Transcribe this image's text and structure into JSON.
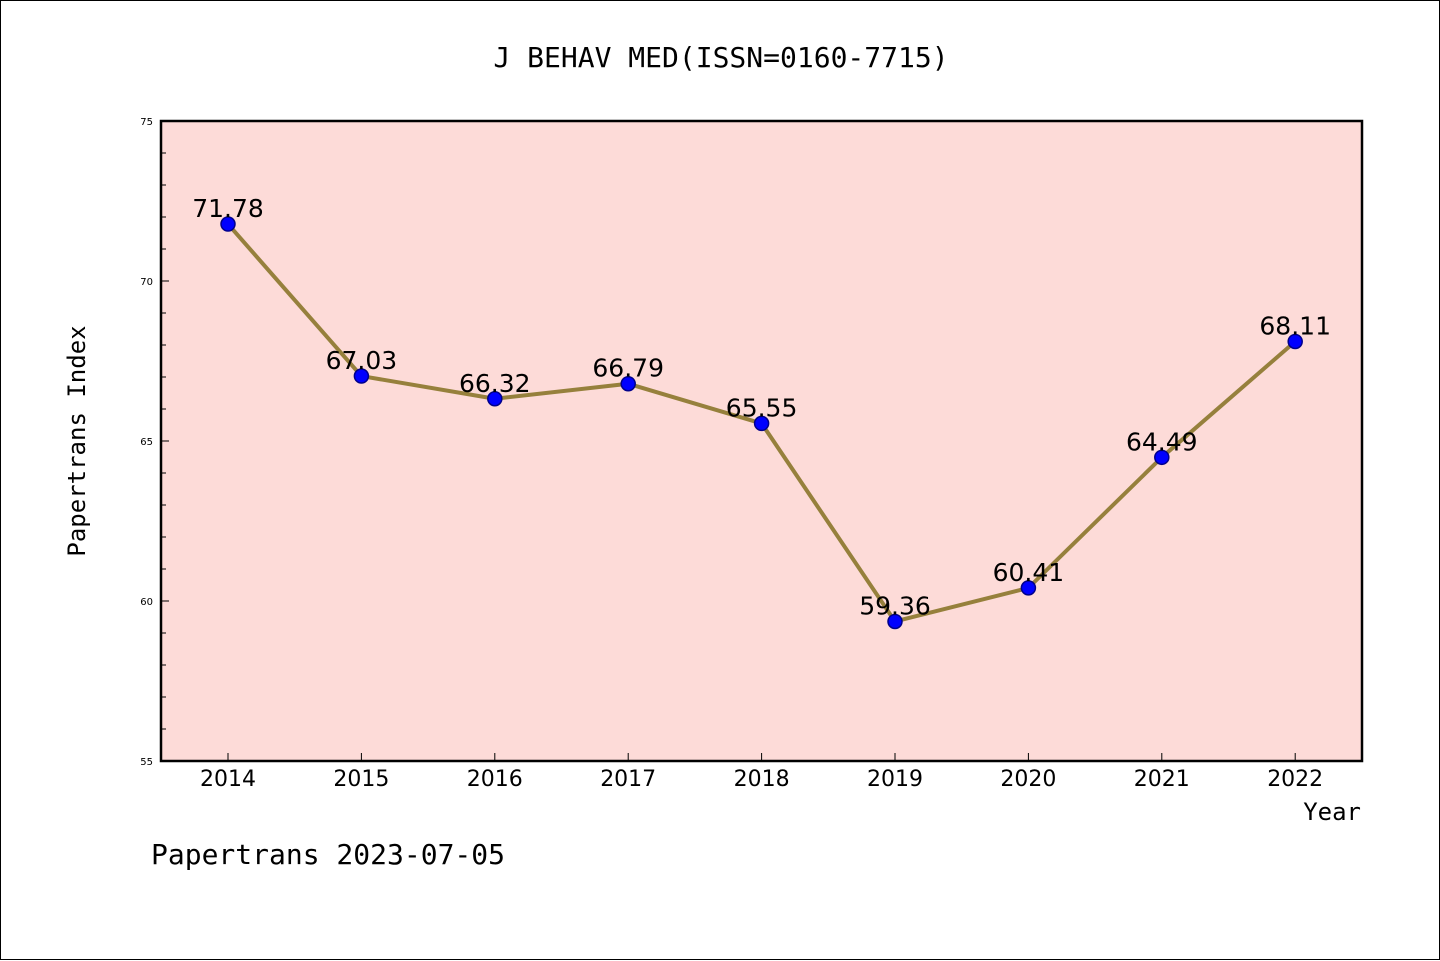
{
  "chart_data": {
    "type": "line",
    "title": "J BEHAV MED(ISSN=0160-7715)",
    "xlabel": "Year",
    "ylabel": "Papertrans Index",
    "footer": "Papertrans 2023-07-05",
    "categories": [
      "2014",
      "2015",
      "2016",
      "2017",
      "2018",
      "2019",
      "2020",
      "2021",
      "2022"
    ],
    "series": [
      {
        "values": [
          71.78,
          67.03,
          66.32,
          66.79,
          65.55,
          59.36,
          60.41,
          64.49,
          68.11
        ],
        "labels": [
          "71.78",
          "67.03",
          "66.32",
          "66.79",
          "65.55",
          "59.36",
          "60.41",
          "64.49",
          "68.11"
        ]
      }
    ],
    "ylim": [
      55,
      75
    ],
    "yticks": [
      "55",
      "60",
      "65",
      "70",
      "75"
    ],
    "ytick_values": [
      55,
      60,
      65,
      70,
      75
    ],
    "grid": false,
    "colors": {
      "plot_background": "#fddbd8",
      "line": "#96803c",
      "marker": "#0000ff",
      "marker_edge": "#00008b"
    }
  }
}
